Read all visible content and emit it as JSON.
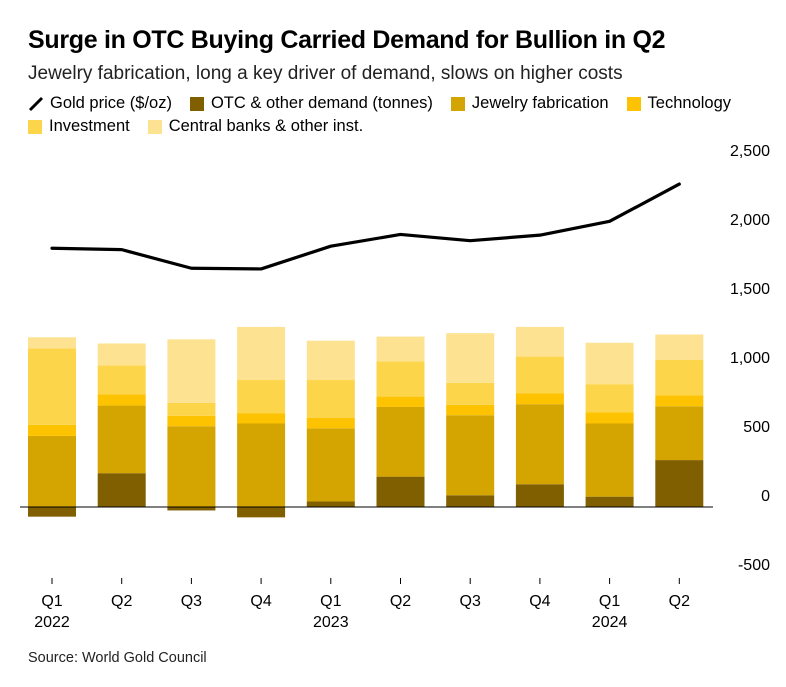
{
  "title": "Surge in OTC Buying Carried Demand for Bullion in Q2",
  "subtitle": "Jewelry fabrication, long a key driver of demand, slows on higher costs",
  "source": "Source: World Gold Council",
  "legend": [
    {
      "label": "Gold price ($/oz)",
      "kind": "line",
      "color": "#000000",
      "icon": "diagonal-line-icon"
    },
    {
      "label": "OTC & other demand (tonnes)",
      "kind": "box",
      "color": "#7f5f00"
    },
    {
      "label": "Jewelry fabrication",
      "kind": "box",
      "color": "#d4a500"
    },
    {
      "label": "Technology",
      "kind": "box",
      "color": "#fdc300"
    },
    {
      "label": "Investment",
      "kind": "box",
      "color": "#fdd54a"
    },
    {
      "label": "Central banks & other inst.",
      "kind": "box",
      "color": "#fde391"
    }
  ],
  "chart_data": {
    "type": "bar",
    "stacked": true,
    "categories": [
      "Q1",
      "Q2",
      "Q3",
      "Q4",
      "Q1",
      "Q2",
      "Q3",
      "Q4",
      "Q1",
      "Q2"
    ],
    "year_labels": [
      {
        "label": "2022",
        "index": 0
      },
      {
        "label": "2023",
        "index": 4
      },
      {
        "label": "2024",
        "index": 8
      }
    ],
    "ylim": [
      -500,
      2500
    ],
    "yticks": [
      -500,
      0,
      500,
      1000,
      1500,
      2000,
      2500
    ],
    "ytick_labels": [
      "-500",
      "0",
      "500",
      "1,000",
      "1,500",
      "2,000",
      "2,500"
    ],
    "series": [
      {
        "name": "OTC & other demand (tonnes)",
        "color": "#7f5f00",
        "values": [
          -70,
          245,
          -25,
          -75,
          40,
          220,
          85,
          165,
          75,
          340
        ]
      },
      {
        "name": "Jewelry fabrication",
        "color": "#d4a500",
        "values": [
          515,
          490,
          585,
          605,
          530,
          505,
          580,
          580,
          530,
          390
        ]
      },
      {
        "name": "Technology",
        "color": "#fdc300",
        "values": [
          80,
          80,
          75,
          75,
          75,
          75,
          75,
          80,
          80,
          80
        ]
      },
      {
        "name": "Investment",
        "color": "#fdd54a",
        "values": [
          555,
          210,
          95,
          240,
          275,
          255,
          160,
          265,
          205,
          255
        ]
      },
      {
        "name": "Central banks & other inst.",
        "color": "#fde391",
        "values": [
          80,
          160,
          460,
          385,
          285,
          180,
          360,
          215,
          300,
          185
        ]
      }
    ],
    "line": {
      "name": "Gold price ($/oz)",
      "color": "#000000",
      "values": [
        1875,
        1865,
        1730,
        1725,
        1890,
        1975,
        1930,
        1970,
        2070,
        2340
      ]
    }
  }
}
